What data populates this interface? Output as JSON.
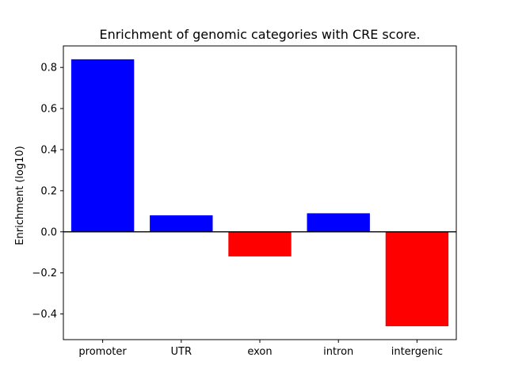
{
  "chart_data": {
    "type": "bar",
    "title": "Enrichment of genomic categories with CRE score.",
    "xlabel": "",
    "ylabel": "Enrichment (log10)",
    "categories": [
      "promoter",
      "UTR",
      "exon",
      "intron",
      "intergenic"
    ],
    "values": [
      0.84,
      0.08,
      -0.12,
      0.09,
      -0.46
    ],
    "colors": [
      "#0000ff",
      "#0000ff",
      "#ff0000",
      "#0000ff",
      "#ff0000"
    ],
    "positive_color": "#0000ff",
    "negative_color": "#ff0000",
    "ylim": [
      -0.525,
      0.905
    ],
    "yticks": [
      -0.4,
      -0.2,
      0.0,
      0.2,
      0.4,
      0.6,
      0.8
    ],
    "grid": false,
    "legend": false,
    "zero_line": true,
    "axis_color": "#000000",
    "background_color": "#ffffff"
  }
}
